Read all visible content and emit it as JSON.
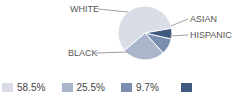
{
  "chart_data": {
    "type": "pie",
    "categories": [
      "WHITE",
      "BLACK",
      "HISPANIC",
      "ASIAN"
    ],
    "values": [
      58.5,
      25.5,
      9.7,
      6.3
    ],
    "value_labels": [
      "58.5%",
      "25.5%",
      "9.7%",
      null
    ],
    "colors": [
      "#d9dde6",
      "#a9b6cc",
      "#7a8fb0",
      "#3e5a80"
    ]
  }
}
